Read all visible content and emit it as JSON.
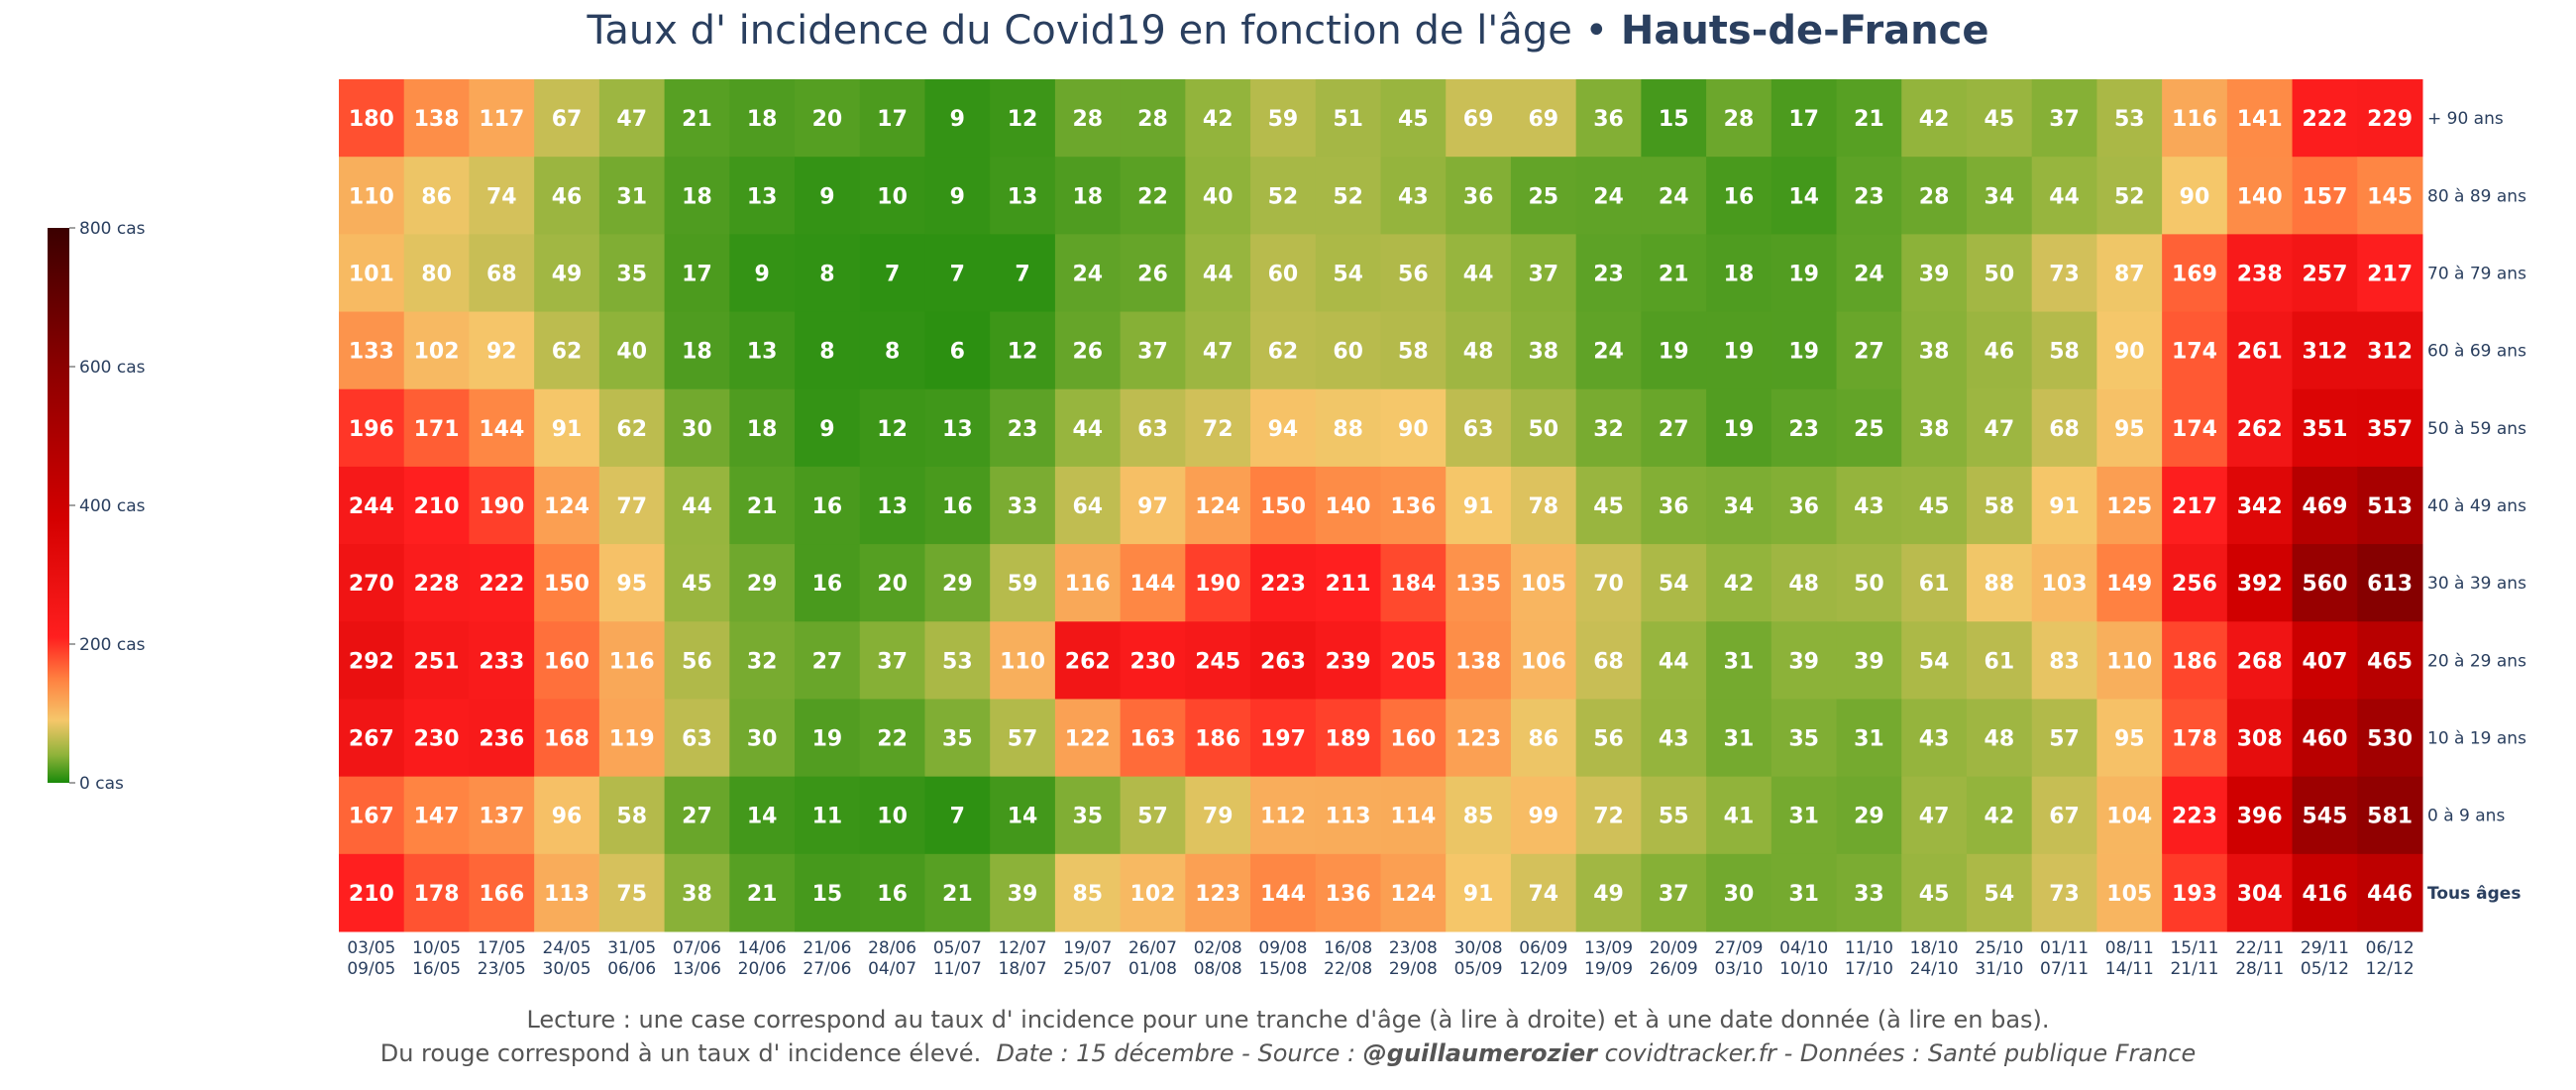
{
  "title": {
    "main": "Taux d' incidence du Covid19 en fonction de l'âge",
    "separator": " • ",
    "region": "Hauts-de-France"
  },
  "footer": {
    "line1": "Lecture : une case correspond au taux d' incidence pour une tranche d'âge (à lire à droite) et à une date donnée (à lire en bas).",
    "line2_plain": "Du rouge correspond à un taux d' incidence élevé.",
    "line2_date": "Date : 15 décembre - Source :",
    "line2_author": "@guillaumerozier",
    "line2_rest": "covidtracker.fr - Données : Santé publique France"
  },
  "colorbar": {
    "ticks": [
      {
        "value": 800,
        "label": "800 cas"
      },
      {
        "value": 600,
        "label": "600 cas"
      },
      {
        "value": 400,
        "label": "400 cas"
      },
      {
        "value": 200,
        "label": "200 cas"
      },
      {
        "value": 0,
        "label": "0 cas"
      }
    ],
    "colorscale": [
      "#1a8a0a",
      "#8fb33a",
      "#f5c76a",
      "#ff8040",
      "#ff1f1f",
      "#d40000",
      "#8b0000",
      "#3b0000"
    ]
  },
  "chart_data": {
    "type": "heatmap",
    "x": [
      "03/05\n09/05",
      "10/05\n16/05",
      "17/05\n23/05",
      "24/05\n30/05",
      "31/05\n06/06",
      "07/06\n13/06",
      "14/06\n20/06",
      "21/06\n27/06",
      "28/06\n04/07",
      "05/07\n11/07",
      "12/07\n18/07",
      "19/07\n25/07",
      "26/07\n01/08",
      "02/08\n08/08",
      "09/08\n15/08",
      "16/08\n22/08",
      "23/08\n29/08",
      "30/08\n05/09",
      "06/09\n12/09",
      "13/09\n19/09",
      "20/09\n26/09",
      "27/09\n03/10",
      "04/10\n10/10",
      "11/10\n17/10",
      "18/10\n24/10",
      "25/10\n31/10",
      "01/11\n07/11",
      "08/11\n14/11",
      "15/11\n21/11",
      "22/11\n28/11",
      "29/11\n05/12",
      "06/12\n12/12"
    ],
    "y": [
      "+ 90 ans",
      "80 à 89 ans",
      "70 à 79 ans",
      "60 à 69 ans",
      "50 à 59 ans",
      "40 à 49 ans",
      "30 à 39 ans",
      "20 à 29 ans",
      "10 à 19 ans",
      "0 à 9 ans",
      "Tous âges"
    ],
    "values": [
      [
        180,
        138,
        117,
        67,
        47,
        21,
        18,
        20,
        17,
        9,
        12,
        28,
        28,
        42,
        59,
        51,
        45,
        69,
        69,
        36,
        15,
        28,
        17,
        21,
        42,
        45,
        37,
        53,
        116,
        141,
        222,
        229
      ],
      [
        110,
        86,
        74,
        46,
        31,
        18,
        13,
        9,
        10,
        9,
        13,
        18,
        22,
        40,
        52,
        52,
        43,
        36,
        25,
        24,
        24,
        16,
        14,
        23,
        28,
        34,
        44,
        52,
        90,
        140,
        157,
        145
      ],
      [
        101,
        80,
        68,
        49,
        35,
        17,
        9,
        8,
        7,
        7,
        7,
        24,
        26,
        44,
        60,
        54,
        56,
        44,
        37,
        23,
        21,
        18,
        19,
        24,
        39,
        50,
        73,
        87,
        169,
        238,
        257,
        217
      ],
      [
        133,
        102,
        92,
        62,
        40,
        18,
        13,
        8,
        8,
        6,
        12,
        26,
        37,
        47,
        62,
        60,
        58,
        48,
        38,
        24,
        19,
        19,
        19,
        27,
        38,
        46,
        58,
        90,
        174,
        261,
        312,
        312
      ],
      [
        196,
        171,
        144,
        91,
        62,
        30,
        18,
        9,
        12,
        13,
        23,
        44,
        63,
        72,
        94,
        88,
        90,
        63,
        50,
        32,
        27,
        19,
        23,
        25,
        38,
        47,
        68,
        95,
        174,
        262,
        351,
        357
      ],
      [
        244,
        210,
        190,
        124,
        77,
        44,
        21,
        16,
        13,
        16,
        33,
        64,
        97,
        124,
        150,
        140,
        136,
        91,
        78,
        45,
        36,
        34,
        36,
        43,
        45,
        58,
        91,
        125,
        217,
        342,
        469,
        513
      ],
      [
        270,
        228,
        222,
        150,
        95,
        45,
        29,
        16,
        20,
        29,
        59,
        116,
        144,
        190,
        223,
        211,
        184,
        135,
        105,
        70,
        54,
        42,
        48,
        50,
        61,
        88,
        103,
        149,
        256,
        392,
        560,
        613
      ],
      [
        292,
        251,
        233,
        160,
        116,
        56,
        32,
        27,
        37,
        53,
        110,
        262,
        230,
        245,
        263,
        239,
        205,
        138,
        106,
        68,
        44,
        31,
        39,
        39,
        54,
        61,
        83,
        110,
        186,
        268,
        407,
        465
      ],
      [
        267,
        230,
        236,
        168,
        119,
        63,
        30,
        19,
        22,
        35,
        57,
        122,
        163,
        186,
        197,
        189,
        160,
        123,
        86,
        56,
        43,
        31,
        35,
        31,
        43,
        48,
        57,
        95,
        178,
        308,
        460,
        530
      ],
      [
        167,
        147,
        137,
        96,
        58,
        27,
        14,
        11,
        10,
        7,
        14,
        35,
        57,
        79,
        112,
        113,
        114,
        85,
        99,
        72,
        55,
        41,
        31,
        29,
        47,
        42,
        67,
        104,
        223,
        396,
        545,
        581
      ],
      [
        210,
        178,
        166,
        113,
        75,
        38,
        21,
        15,
        16,
        21,
        39,
        85,
        102,
        123,
        144,
        136,
        124,
        91,
        74,
        49,
        37,
        30,
        31,
        33,
        45,
        54,
        73,
        105,
        193,
        304,
        416,
        446
      ]
    ],
    "zrange": [
      0,
      800
    ],
    "colorbar_title": ""
  }
}
